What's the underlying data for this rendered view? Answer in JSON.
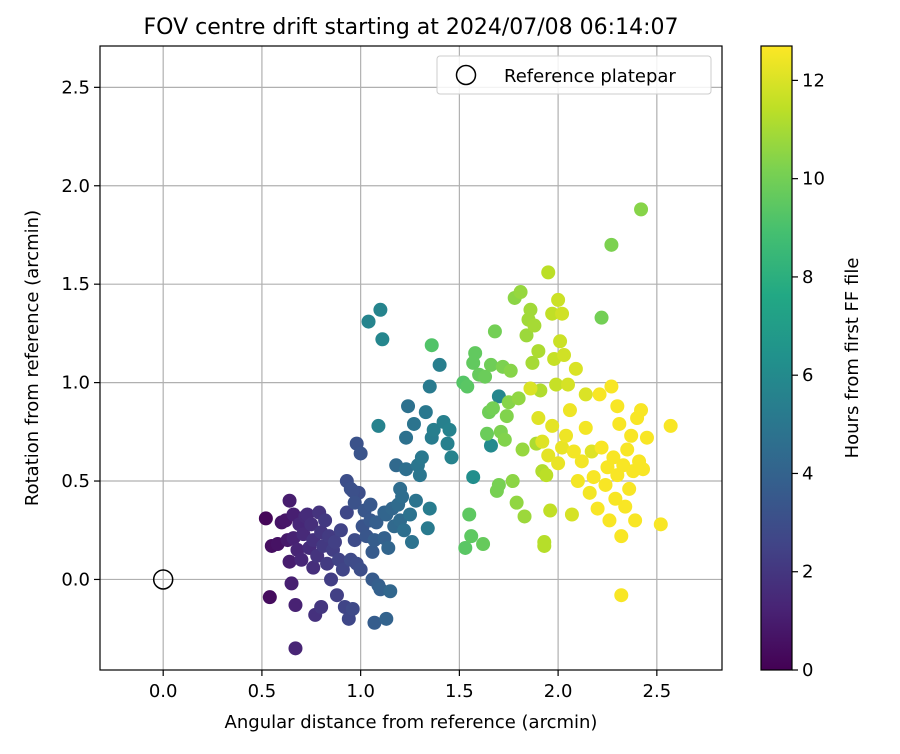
{
  "chart_data": {
    "type": "scatter",
    "title": "FOV centre drift starting at 2024/07/08 06:14:07",
    "xlabel": "Angular distance from reference (arcmin)",
    "ylabel": "Rotation from reference (arcmin)",
    "xlim": [
      -0.32,
      2.83
    ],
    "ylim": [
      -0.46,
      2.71
    ],
    "x_ticks": [
      0.0,
      0.5,
      1.0,
      1.5,
      2.0,
      2.5
    ],
    "y_ticks": [
      0.0,
      0.5,
      1.0,
      1.5,
      2.0,
      2.5
    ],
    "x_tick_labels": [
      "0.0",
      "0.5",
      "1.0",
      "1.5",
      "2.0",
      "2.5"
    ],
    "y_tick_labels": [
      "0.0",
      "0.5",
      "1.0",
      "1.5",
      "2.0",
      "2.5"
    ],
    "grid": true,
    "legend": {
      "position": "top-right",
      "entries": [
        "Reference platepar"
      ]
    },
    "reference_point": {
      "x": 0.0,
      "y": 0.0,
      "label": "Reference platepar"
    },
    "colorbar": {
      "label": "Hours from first FF file",
      "range": [
        0,
        12.7
      ],
      "ticks": [
        0,
        2,
        4,
        6,
        8,
        10,
        12
      ],
      "tick_labels": [
        "0",
        "2",
        "4",
        "6",
        "8",
        "10",
        "12"
      ],
      "colormap": "viridis"
    },
    "series": [
      {
        "points": [
          [
            0.52,
            0.31
          ],
          [
            0.54,
            -0.09
          ],
          [
            0.55,
            0.17
          ],
          [
            0.58,
            0.18
          ],
          [
            0.6,
            0.29
          ],
          [
            0.62,
            0.3
          ],
          [
            0.63,
            0.2
          ],
          [
            0.64,
            0.4
          ],
          [
            0.64,
            0.09
          ],
          [
            0.65,
            -0.02
          ],
          [
            0.66,
            0.33
          ],
          [
            0.66,
            0.21
          ],
          [
            0.67,
            -0.13
          ],
          [
            0.67,
            -0.35
          ],
          [
            0.68,
            0.15
          ],
          [
            0.69,
            0.28
          ],
          [
            0.7,
            0.1
          ],
          [
            0.71,
            0.23
          ],
          [
            0.72,
            0.32
          ],
          [
            0.73,
            0.33
          ],
          [
            0.74,
            0.16
          ],
          [
            0.75,
            0.28
          ],
          [
            0.76,
            0.06
          ],
          [
            0.76,
            0.2
          ],
          [
            0.77,
            -0.18
          ],
          [
            0.78,
            0.12
          ],
          [
            0.79,
            0.34
          ],
          [
            0.8,
            0.24
          ],
          [
            0.8,
            -0.14
          ],
          [
            0.81,
            0.17
          ],
          [
            0.82,
            0.3
          ],
          [
            0.83,
            0.08
          ],
          [
            0.84,
            0.22
          ],
          [
            0.85,
            0.0
          ],
          [
            0.86,
            0.15
          ],
          [
            0.87,
            0.19
          ],
          [
            0.88,
            -0.08
          ],
          [
            0.89,
            0.1
          ],
          [
            0.9,
            0.25
          ],
          [
            0.91,
            0.05
          ],
          [
            0.92,
            -0.14
          ],
          [
            0.93,
            0.34
          ],
          [
            0.94,
            -0.2
          ],
          [
            0.95,
            0.1
          ],
          [
            0.96,
            -0.15
          ],
          [
            0.97,
            0.2
          ],
          [
            0.98,
            0.08
          ],
          [
            0.99,
            0.44
          ],
          [
            1.0,
            0.05
          ]
        ],
        "t": [
          0.2,
          0.4,
          0.5,
          0.6,
          0.7,
          0.8,
          0.9,
          1.0,
          1.0,
          1.1,
          1.1,
          1.2,
          1.2,
          1.3,
          1.3,
          1.4,
          1.4,
          1.5,
          1.5,
          1.6,
          1.6,
          1.7,
          1.7,
          1.8,
          1.8,
          1.9,
          1.9,
          2.0,
          2.0,
          2.1,
          2.1,
          2.2,
          2.2,
          2.3,
          2.3,
          2.4,
          2.4,
          2.5,
          2.5,
          2.6,
          2.6,
          2.7,
          2.7,
          2.8,
          2.8,
          2.9,
          2.9,
          3.0,
          3.0
        ]
      },
      {
        "points": [
          [
            0.93,
            0.5
          ],
          [
            0.95,
            0.46
          ],
          [
            0.96,
            0.45
          ],
          [
            0.97,
            0.39
          ],
          [
            0.98,
            0.69
          ],
          [
            1.0,
            0.64
          ],
          [
            1.01,
            0.27
          ],
          [
            1.02,
            0.35
          ],
          [
            1.03,
            0.22
          ],
          [
            1.04,
            1.31
          ],
          [
            1.05,
            0.38
          ],
          [
            1.05,
            0.3
          ],
          [
            1.06,
            0.0
          ],
          [
            1.06,
            0.14
          ],
          [
            1.07,
            -0.22
          ],
          [
            1.07,
            0.2
          ],
          [
            1.08,
            0.29
          ],
          [
            1.09,
            0.78
          ],
          [
            1.09,
            -0.03
          ],
          [
            1.1,
            1.37
          ],
          [
            1.1,
            -0.05
          ],
          [
            1.11,
            1.22
          ],
          [
            1.12,
            0.21
          ],
          [
            1.12,
            0.34
          ],
          [
            1.13,
            -0.2
          ],
          [
            1.13,
            0.33
          ],
          [
            1.14,
            0.16
          ],
          [
            1.15,
            -0.06
          ],
          [
            1.16,
            0.36
          ],
          [
            1.17,
            0.27
          ],
          [
            1.18,
            0.58
          ],
          [
            1.19,
            0.38
          ],
          [
            1.2,
            0.3
          ],
          [
            1.2,
            0.46
          ],
          [
            1.21,
            0.42
          ],
          [
            1.22,
            0.25
          ],
          [
            1.23,
            0.56
          ],
          [
            1.23,
            0.72
          ],
          [
            1.24,
            0.88
          ],
          [
            1.25,
            0.33
          ],
          [
            1.26,
            0.19
          ],
          [
            1.27,
            0.79
          ],
          [
            1.28,
            0.4
          ],
          [
            1.29,
            0.58
          ],
          [
            1.3,
            0.53
          ],
          [
            1.31,
            0.62
          ],
          [
            1.33,
            0.85
          ],
          [
            1.34,
            0.26
          ],
          [
            1.35,
            0.98
          ],
          [
            1.35,
            0.36
          ],
          [
            1.36,
            0.72
          ],
          [
            1.37,
            0.76
          ],
          [
            1.4,
            1.09
          ],
          [
            1.42,
            0.8
          ],
          [
            1.44,
            0.69
          ],
          [
            1.45,
            0.76
          ],
          [
            1.46,
            0.62
          ],
          [
            1.57,
            0.52
          ],
          [
            1.66,
            0.68
          ],
          [
            1.7,
            0.93
          ]
        ],
        "t": [
          3.0,
          3.1,
          3.1,
          3.2,
          3.2,
          3.3,
          3.3,
          3.4,
          3.4,
          5.7,
          3.5,
          3.5,
          3.6,
          3.6,
          3.7,
          3.7,
          3.8,
          5.6,
          3.8,
          5.7,
          3.9,
          5.8,
          3.9,
          4.0,
          4.0,
          4.1,
          4.1,
          4.2,
          4.2,
          4.3,
          4.3,
          4.4,
          4.4,
          4.5,
          4.5,
          4.6,
          4.6,
          4.7,
          4.7,
          4.8,
          4.8,
          4.9,
          4.9,
          5.0,
          5.0,
          5.1,
          5.1,
          5.2,
          5.2,
          5.3,
          5.3,
          5.4,
          5.4,
          5.5,
          5.5,
          5.6,
          5.6,
          6.2,
          6.0,
          5.8
        ]
      },
      {
        "points": [
          [
            1.36,
            1.19
          ],
          [
            1.52,
            1.0
          ],
          [
            1.54,
            0.98
          ],
          [
            1.53,
            0.16
          ],
          [
            1.55,
            0.33
          ],
          [
            1.56,
            0.22
          ],
          [
            1.57,
            1.1
          ],
          [
            1.58,
            1.15
          ],
          [
            1.6,
            1.04
          ],
          [
            1.62,
            0.18
          ],
          [
            1.63,
            1.03
          ],
          [
            1.64,
            0.74
          ],
          [
            1.65,
            0.85
          ],
          [
            1.66,
            1.09
          ],
          [
            1.67,
            0.87
          ],
          [
            1.68,
            1.26
          ],
          [
            1.69,
            0.45
          ],
          [
            1.7,
            0.48
          ],
          [
            1.71,
            0.75
          ],
          [
            1.72,
            1.08
          ],
          [
            1.73,
            0.71
          ],
          [
            1.74,
            0.83
          ],
          [
            1.75,
            0.9
          ],
          [
            1.76,
            1.06
          ],
          [
            1.77,
            0.5
          ],
          [
            1.78,
            1.43
          ],
          [
            1.79,
            0.39
          ],
          [
            1.8,
            0.92
          ],
          [
            1.81,
            1.46
          ],
          [
            1.82,
            0.66
          ],
          [
            1.83,
            0.32
          ],
          [
            1.84,
            1.24
          ],
          [
            1.85,
            1.32
          ],
          [
            1.86,
            1.37
          ],
          [
            1.87,
            1.1
          ],
          [
            1.88,
            1.29
          ],
          [
            1.89,
            0.69
          ],
          [
            1.9,
            1.16
          ],
          [
            1.91,
            0.96
          ],
          [
            1.92,
            0.55
          ],
          [
            1.93,
            0.19
          ],
          [
            1.93,
            0.17
          ],
          [
            1.94,
            0.53
          ],
          [
            1.95,
            1.56
          ],
          [
            1.96,
            0.35
          ],
          [
            1.97,
            1.35
          ],
          [
            1.98,
            1.12
          ],
          [
            1.99,
            0.99
          ],
          [
            2.0,
            1.42
          ],
          [
            2.01,
            1.21
          ],
          [
            2.02,
            1.35
          ],
          [
            2.03,
            1.14
          ],
          [
            2.05,
            0.99
          ],
          [
            2.07,
            0.33
          ],
          [
            2.09,
            1.07
          ],
          [
            2.14,
            0.94
          ],
          [
            2.17,
            0.65
          ],
          [
            2.22,
            1.33
          ],
          [
            2.27,
            1.7
          ],
          [
            2.42,
            1.88
          ]
        ],
        "t": [
          9.2,
          9.3,
          9.4,
          9.4,
          9.5,
          9.5,
          9.6,
          9.6,
          9.7,
          9.7,
          9.8,
          9.8,
          9.9,
          9.9,
          10.0,
          10.0,
          10.1,
          10.1,
          10.2,
          10.2,
          10.3,
          10.3,
          10.4,
          10.4,
          10.5,
          10.5,
          10.6,
          10.6,
          10.7,
          10.7,
          10.8,
          10.8,
          10.9,
          10.9,
          11.0,
          11.0,
          11.1,
          11.1,
          11.2,
          11.2,
          11.3,
          11.3,
          11.4,
          11.4,
          11.5,
          11.5,
          11.6,
          11.6,
          11.7,
          11.7,
          11.8,
          11.8,
          11.9,
          11.9,
          12.0,
          12.0,
          12.1,
          10.0,
          10.2,
          10.4
        ]
      },
      {
        "points": [
          [
            1.86,
            0.97
          ],
          [
            1.9,
            0.82
          ],
          [
            1.92,
            0.7
          ],
          [
            1.95,
            0.63
          ],
          [
            1.97,
            0.78
          ],
          [
            2.0,
            0.59
          ],
          [
            2.02,
            0.67
          ],
          [
            2.04,
            0.73
          ],
          [
            2.06,
            0.86
          ],
          [
            2.08,
            0.65
          ],
          [
            2.1,
            0.5
          ],
          [
            2.12,
            0.6
          ],
          [
            2.14,
            0.77
          ],
          [
            2.16,
            0.44
          ],
          [
            2.18,
            0.52
          ],
          [
            2.2,
            0.36
          ],
          [
            2.21,
            0.94
          ],
          [
            2.22,
            0.67
          ],
          [
            2.24,
            0.48
          ],
          [
            2.25,
            0.57
          ],
          [
            2.26,
            0.3
          ],
          [
            2.27,
            0.98
          ],
          [
            2.28,
            0.62
          ],
          [
            2.29,
            0.41
          ],
          [
            2.3,
            0.88
          ],
          [
            2.3,
            0.53
          ],
          [
            2.31,
            0.79
          ],
          [
            2.32,
            0.22
          ],
          [
            2.32,
            -0.08
          ],
          [
            2.33,
            0.58
          ],
          [
            2.34,
            0.37
          ],
          [
            2.35,
            0.66
          ],
          [
            2.36,
            0.46
          ],
          [
            2.37,
            0.73
          ],
          [
            2.38,
            0.55
          ],
          [
            2.39,
            0.3
          ],
          [
            2.4,
            0.82
          ],
          [
            2.41,
            0.6
          ],
          [
            2.42,
            0.86
          ],
          [
            2.43,
            0.56
          ],
          [
            2.45,
            0.72
          ],
          [
            2.52,
            0.28
          ],
          [
            2.57,
            0.78
          ]
        ],
        "t": [
          12.0,
          12.1,
          12.1,
          12.2,
          12.2,
          12.3,
          12.3,
          12.4,
          12.4,
          12.5,
          12.5,
          12.5,
          12.5,
          12.5,
          12.6,
          12.6,
          12.6,
          12.6,
          12.6,
          12.6,
          12.6,
          12.6,
          12.6,
          12.6,
          12.6,
          12.6,
          12.6,
          12.6,
          12.6,
          12.6,
          12.6,
          12.6,
          12.6,
          12.6,
          12.6,
          12.6,
          12.6,
          12.6,
          12.6,
          12.6,
          12.6,
          12.6,
          12.6
        ]
      }
    ]
  }
}
